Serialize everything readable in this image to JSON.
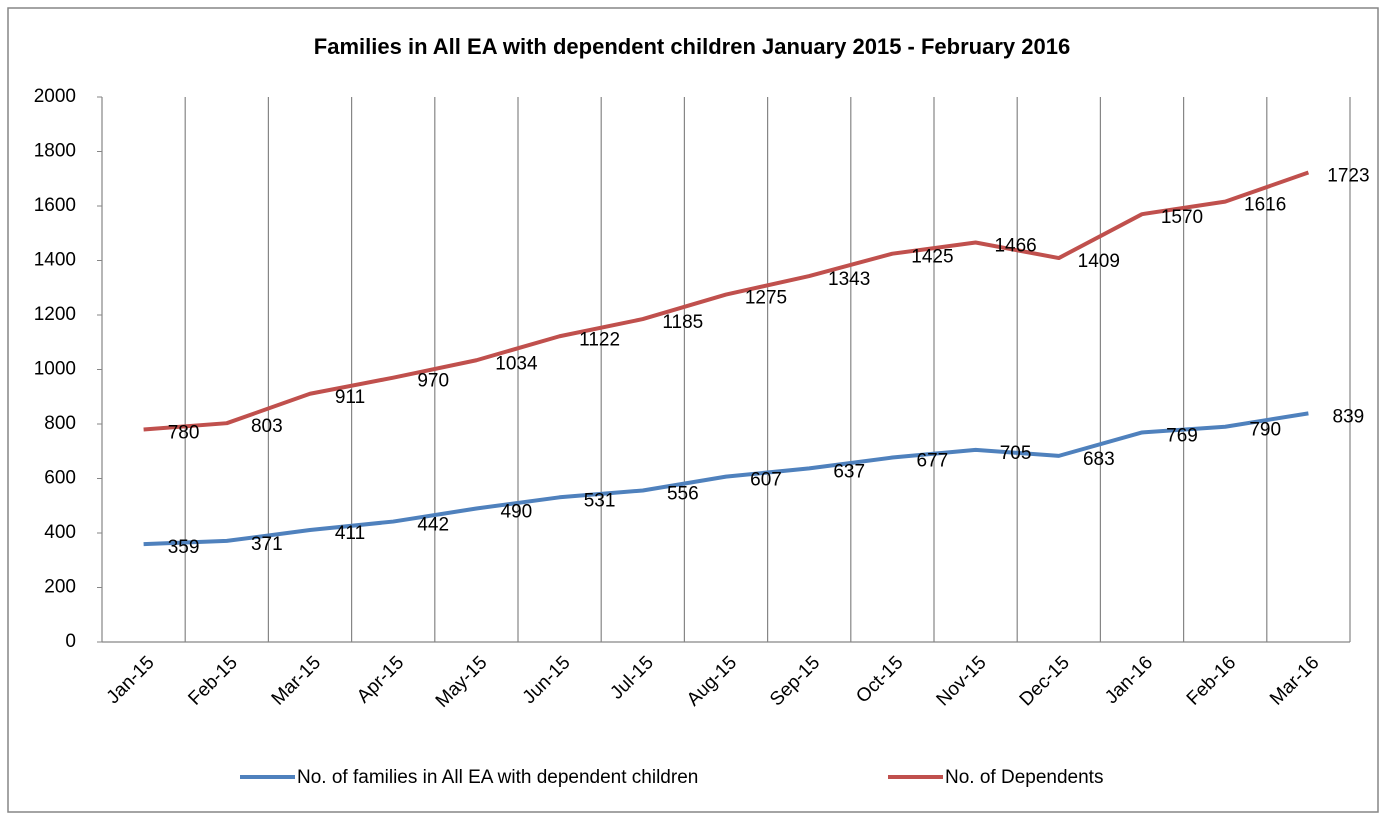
{
  "chart_data": {
    "type": "line",
    "title": "Families in All EA with dependent children January 2015 - February 2016",
    "categories": [
      "Jan-15",
      "Feb-15",
      "Mar-15",
      "Apr-15",
      "May-15",
      "Jun-15",
      "Jul-15",
      "Aug-15",
      "Sep-15",
      "Oct-15",
      "Nov-15",
      "Dec-15",
      "Jan-16",
      "Feb-16",
      "Mar-16"
    ],
    "series": [
      {
        "name": "No. of families in All EA with dependent children",
        "color": "#4f81bd",
        "values": [
          359,
          371,
          411,
          442,
          490,
          531,
          556,
          607,
          637,
          677,
          705,
          683,
          769,
          790,
          839
        ]
      },
      {
        "name": "No. of Dependents",
        "color": "#c0504d",
        "values": [
          780,
          803,
          911,
          970,
          1034,
          1122,
          1185,
          1275,
          1343,
          1425,
          1466,
          1409,
          1570,
          1616,
          1723
        ]
      }
    ],
    "ylim": [
      0,
      2000
    ],
    "yticks": [
      0,
      200,
      400,
      600,
      800,
      1000,
      1200,
      1400,
      1600,
      1800,
      2000
    ],
    "grid": "vertical",
    "legend": "bottom"
  }
}
